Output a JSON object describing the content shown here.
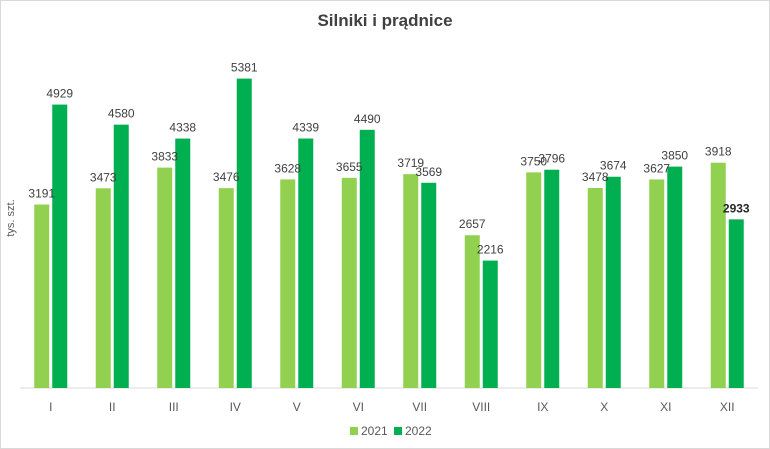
{
  "chart_data": {
    "type": "bar",
    "title": "Silniki i prądnice",
    "ylabel": "tys. szt.",
    "xlabel": "",
    "ylim": [
      0,
      5600
    ],
    "grid": false,
    "legend_position": "bottom",
    "categories": [
      "I",
      "II",
      "III",
      "IV",
      "V",
      "VI",
      "VII",
      "VIII",
      "IX",
      "X",
      "XI",
      "XII"
    ],
    "series": [
      {
        "name": "2021",
        "color": "#92d050",
        "values": [
          3191,
          3473,
          3833,
          3476,
          3628,
          3655,
          3719,
          2657,
          3750,
          3478,
          3627,
          3918
        ],
        "labels": [
          "3191",
          "3473",
          "3833",
          "3476",
          "3628",
          "3655",
          "3719",
          "2657",
          "3750",
          "3478",
          "3627",
          "3918"
        ]
      },
      {
        "name": "2022",
        "color": "#00b050",
        "values": [
          4929,
          4580,
          4338,
          5381,
          4339,
          4490,
          3569,
          2216,
          3796,
          3674,
          3850,
          2933
        ],
        "labels": [
          "4929",
          "4580",
          "4338",
          "5381",
          "4339",
          "4490",
          "3569",
          "2216",
          "3796",
          "3674",
          "3850",
          "2933"
        ]
      }
    ],
    "bold_label": {
      "series": 1,
      "index": 11
    }
  }
}
